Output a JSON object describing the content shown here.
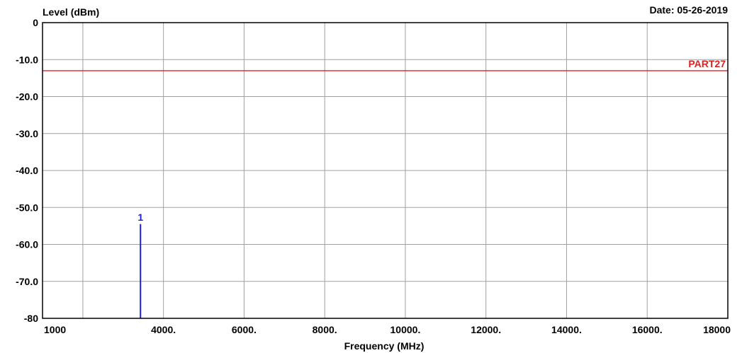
{
  "chart_data": {
    "type": "line",
    "title": "",
    "ylabel": "Level (dBm)",
    "xlabel": "Frequency (MHz)",
    "date_text": "Date: 05-26-2019",
    "xlim": [
      1000,
      18000
    ],
    "ylim": [
      -80,
      0
    ],
    "grid": true,
    "x_ticks": [
      {
        "value": 1000,
        "label": "1000"
      },
      {
        "value": 4000,
        "label": "4000."
      },
      {
        "value": 6000,
        "label": "6000."
      },
      {
        "value": 8000,
        "label": "8000."
      },
      {
        "value": 10000,
        "label": "10000."
      },
      {
        "value": 12000,
        "label": "12000."
      },
      {
        "value": 14000,
        "label": "14000."
      },
      {
        "value": 16000,
        "label": "16000."
      },
      {
        "value": 18000,
        "label": "18000"
      }
    ],
    "x_gridlines": [
      2000,
      4000,
      6000,
      8000,
      10000,
      12000,
      14000,
      16000
    ],
    "y_ticks": [
      {
        "value": 0,
        "label": "0"
      },
      {
        "value": -10,
        "label": "-10.0"
      },
      {
        "value": -20,
        "label": "-20.0"
      },
      {
        "value": -30,
        "label": "-30.0"
      },
      {
        "value": -40,
        "label": "-40.0"
      },
      {
        "value": -50,
        "label": "-50.0"
      },
      {
        "value": -60,
        "label": "-60.0"
      },
      {
        "value": -70,
        "label": "-70.0"
      },
      {
        "value": -80,
        "label": "-80"
      }
    ],
    "limit_line": {
      "name": "PART27",
      "value": -13,
      "color": "#e02020"
    },
    "markers": [
      {
        "label": "1",
        "x": 3430,
        "y": -54.5,
        "color": "#1f1fd6"
      }
    ],
    "colors": {
      "grid": "#a0a0a0",
      "axis": "#000000",
      "text": "#000000"
    }
  }
}
